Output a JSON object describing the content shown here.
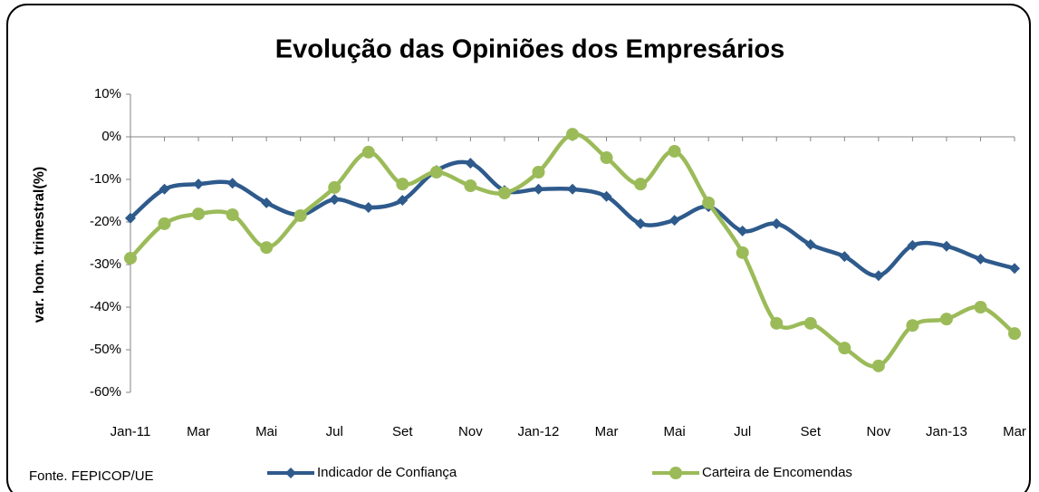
{
  "chart_data": {
    "type": "line",
    "title": "Evolução das Opiniões dos Empresários",
    "y_label": "var. hom. trimestral(%)",
    "source": "Fonte. FEPICOP/UE",
    "categories": [
      "Jan-11",
      null,
      "Mar",
      null,
      "Mai",
      null,
      "Jul",
      null,
      "Set",
      null,
      "Nov",
      null,
      "Jan-12",
      null,
      "Mar",
      null,
      "Mai",
      null,
      "Jul",
      null,
      "Set",
      null,
      "Nov",
      null,
      "Jan-13",
      null,
      "Mar"
    ],
    "series": [
      {
        "name": "Indicador de Confiança",
        "color": "#2e5a8c",
        "marker": "diamond",
        "values": [
          -19.1,
          -12.3,
          -11.1,
          -10.9,
          -15.5,
          -18.3,
          -14.7,
          -16.6,
          -14.9,
          -7.9,
          -6.2,
          -12.6,
          -12.3,
          -12.3,
          -14.0,
          -20.4,
          -19.6,
          -16.4,
          -22.1,
          -20.4,
          -25.3,
          -28.1,
          -32.6,
          -25.5,
          -25.7,
          -28.7,
          -30.9
        ]
      },
      {
        "name": "Carteira de Encomendas",
        "color": "#9bbb59",
        "marker": "circle",
        "values": [
          -28.5,
          -20.4,
          -18.1,
          -18.3,
          -26.0,
          -18.5,
          -11.9,
          -3.6,
          -11.1,
          -8.3,
          -11.5,
          -13.2,
          -8.3,
          0.6,
          -4.9,
          -11.1,
          -3.4,
          -15.5,
          -27.2,
          -43.8,
          -43.8,
          -49.6,
          -53.8,
          -44.3,
          -42.8,
          -40.0,
          -46.2
        ]
      }
    ],
    "ylim": [
      -60,
      10
    ],
    "yticks": [
      {
        "value": -60,
        "label": "-60%"
      },
      {
        "value": -50,
        "label": "-50%"
      },
      {
        "value": -40,
        "label": "-40%"
      },
      {
        "value": -30,
        "label": "-30%"
      },
      {
        "value": -20,
        "label": "-20%"
      },
      {
        "value": -10,
        "label": "-10%"
      },
      {
        "value": 0,
        "label": "0%"
      },
      {
        "value": 10,
        "label": "10%"
      }
    ],
    "legend": "bottom"
  }
}
